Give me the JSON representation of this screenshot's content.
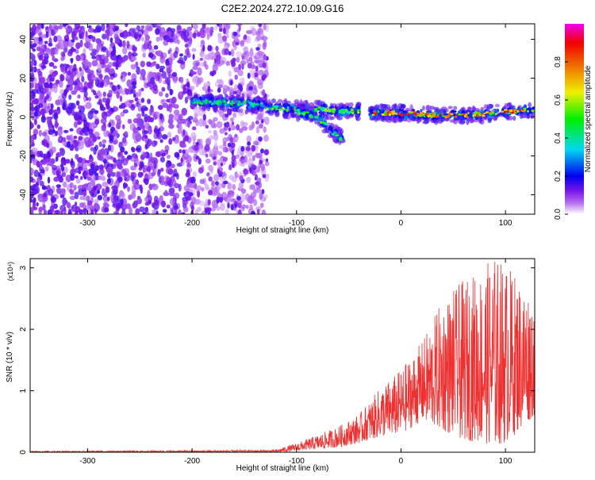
{
  "title": "C2E2.2024.272.10.09.G16",
  "chart_data": [
    {
      "type": "heatmap",
      "title": "C2E2.2024.272.10.09.G16",
      "xlabel": "Height of straight line (km)",
      "ylabel": "Frequency (Hz)",
      "xlim": [
        -355,
        128
      ],
      "ylim": [
        -50,
        48
      ],
      "x_ticks": [
        -300,
        -200,
        -100,
        0,
        100
      ],
      "y_ticks": [
        -40,
        -20,
        0,
        20,
        40
      ],
      "colorbar": {
        "label": "Normalized spectral amplitude",
        "range": [
          0,
          1
        ],
        "ticks": [
          0.0,
          0.2,
          0.4,
          0.6,
          0.8
        ],
        "colors": [
          "#ffffff",
          "#b56cf0",
          "#7a18e8",
          "#0000f0",
          "#00d8f0",
          "#00f000",
          "#f0f000",
          "#f08000",
          "#f00000",
          "#f000f0"
        ]
      },
      "features": [
        {
          "name": "noise_region",
          "x_range": [
            -355,
            -128
          ],
          "y_range": [
            -50,
            48
          ],
          "level": 0.15
        },
        {
          "name": "signal_band_segment_1",
          "x": [
            -200,
            -150,
            -130
          ],
          "y": [
            8,
            7,
            6
          ],
          "level": 0.5
        },
        {
          "name": "signal_band_segment_2",
          "x": [
            -130,
            -100,
            -80,
            -60,
            -40
          ],
          "y": [
            5,
            4,
            4,
            3,
            3
          ],
          "level": 0.6
        },
        {
          "name": "descending_branch",
          "x": [
            -100,
            -80,
            -65,
            -55
          ],
          "y": [
            3,
            0,
            -8,
            -12
          ],
          "level": 0.55
        },
        {
          "name": "stable_band",
          "x": [
            -30,
            0,
            30,
            60,
            90,
            128
          ],
          "y": [
            2,
            2,
            1,
            1,
            2,
            4
          ],
          "level": 0.85
        }
      ]
    },
    {
      "type": "line",
      "xlabel": "Height of straight line (km)",
      "ylabel": "SNR (10 * v/v)",
      "y_multiplier": "(x10⁴)",
      "xlim": [
        -355,
        128
      ],
      "ylim": [
        0,
        3.15
      ],
      "x_ticks": [
        -300,
        -200,
        -100,
        0,
        100
      ],
      "y_ticks": [
        0,
        1,
        2,
        3
      ],
      "color": "#ee3030",
      "envelope": {
        "x": [
          -355,
          -200,
          -120,
          -100,
          -80,
          -60,
          -40,
          -20,
          0,
          20,
          40,
          60,
          80,
          90,
          100,
          110,
          128
        ],
        "peak": [
          0.02,
          0.03,
          0.04,
          0.15,
          0.28,
          0.42,
          0.62,
          1.05,
          1.35,
          1.8,
          2.5,
          2.8,
          3.05,
          3.2,
          3.1,
          2.9,
          2.6
        ],
        "trough": [
          0,
          0,
          0,
          0.02,
          0.05,
          0.08,
          0.15,
          0.25,
          0.3,
          0.5,
          0.35,
          0.2,
          0.15,
          0.1,
          0.15,
          0.3,
          0.6
        ]
      }
    }
  ]
}
